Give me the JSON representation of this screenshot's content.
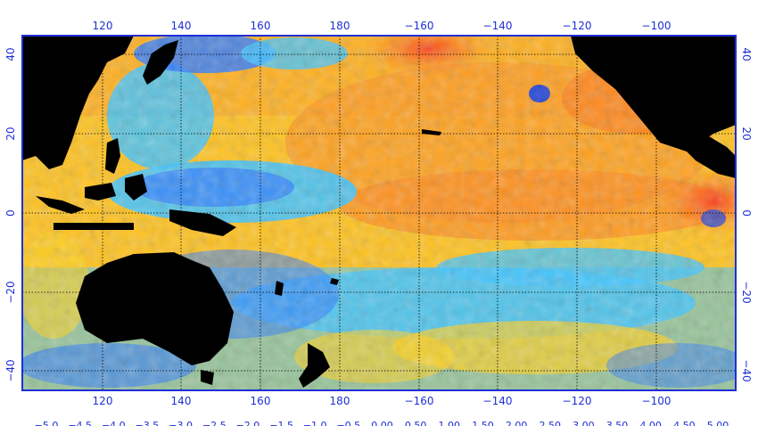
{
  "map": {
    "projection": "equirectangular",
    "lon_ticks_top": [
      "120",
      "140",
      "160",
      "180",
      "−160",
      "−140",
      "−120",
      "−100"
    ],
    "lon_ticks_bottom": [
      "120",
      "140",
      "160",
      "180",
      "−160",
      "−140",
      "−120",
      "−100"
    ],
    "lat_ticks_left": [
      "40",
      "20",
      "0",
      "−20",
      "−40"
    ],
    "lat_ticks_right": [
      "40",
      "20",
      "0",
      "−20",
      "−40"
    ],
    "colorbar_labels": [
      "−5.0",
      "−4.5",
      "−4.0",
      "−3.5",
      "−3.0",
      "−2.5",
      "−2.0",
      "−1.5",
      "−1.0",
      "−0.5",
      "0.00",
      "0.50",
      "1.00",
      "1.50",
      "2.00",
      "2.50",
      "3.00",
      "3.50",
      "4.00",
      "4.50",
      "5.00"
    ],
    "colors": {
      "frame": "#1f2fd6",
      "land": "#000000",
      "warm_strong": "#ff3a1a",
      "warm": "#ff9a1e",
      "mild_warm": "#ffd21e",
      "neutral_cool": "#3fc4ff",
      "cool": "#2f7bff",
      "cool_strong": "#1e3fd6",
      "grid": "#000000"
    }
  }
}
